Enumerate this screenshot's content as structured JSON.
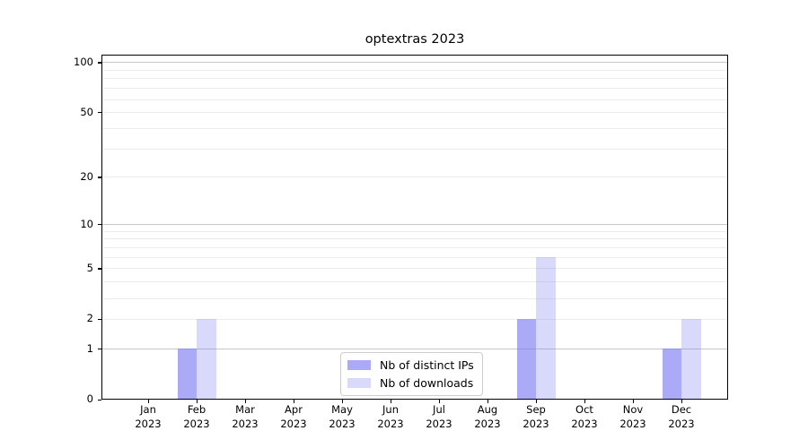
{
  "chart_data": {
    "type": "bar",
    "title": "optextras 2023",
    "categories": [
      "Jan",
      "Feb",
      "Mar",
      "Apr",
      "May",
      "Jun",
      "Jul",
      "Aug",
      "Sep",
      "Oct",
      "Nov",
      "Dec"
    ],
    "x_year_suffix": "2023",
    "series": [
      {
        "name": "Nb of distinct IPs",
        "color": "#7878f2",
        "alpha": 0.63,
        "values": [
          0,
          1,
          0,
          0,
          0,
          0,
          0,
          0,
          2,
          0,
          0,
          1
        ]
      },
      {
        "name": "Nb of downloads",
        "color": "#7878f2",
        "alpha": 0.28,
        "values": [
          0,
          2,
          0,
          0,
          0,
          0,
          0,
          0,
          6,
          0,
          0,
          2
        ]
      }
    ],
    "yticks": [
      0,
      1,
      2,
      5,
      10,
      20,
      50,
      100
    ],
    "ylim": [
      0,
      111
    ],
    "yscale": "log10(1+v)",
    "grid": {
      "axis": "y",
      "minor_color": "#ececec",
      "major_color": "#c6c6c6",
      "major_values": [
        1,
        10,
        100
      ]
    },
    "legend_position": "lower-center-inside",
    "xlabel": "",
    "ylabel": ""
  }
}
